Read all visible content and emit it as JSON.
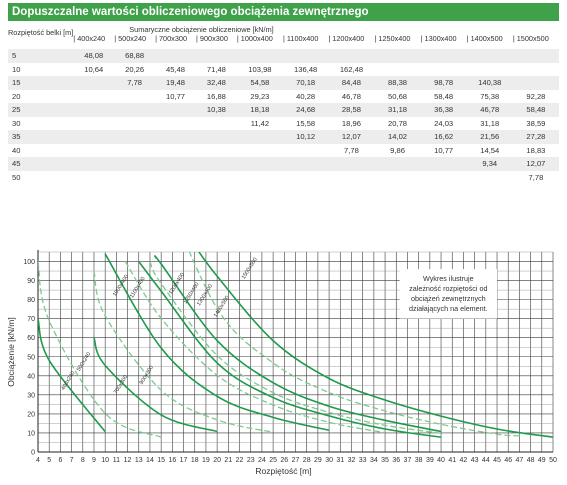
{
  "title": "Dopuszczalne wartości obliczeniowego obciążenia zewnętrznego",
  "table": {
    "span_header": "Rozpiętość belki [m]",
    "load_header": "Sumaryczne obciążenie obliczeniowe [kN/m]",
    "columns": [
      "400x240",
      "500x240",
      "700x300",
      "900x300",
      "1000x400",
      "1100x400",
      "1200x400",
      "1250x400",
      "1300x400",
      "1400x500",
      "1500x500"
    ],
    "rows": [
      {
        "span": "5",
        "values": [
          "48,08",
          "68,88",
          "",
          "",
          "",
          "",
          "",
          "",
          "",
          "",
          ""
        ]
      },
      {
        "span": "10",
        "values": [
          "10,64",
          "20,26",
          "45,48",
          "71,48",
          "103,98",
          "136,48",
          "162,48",
          "",
          "",
          "",
          ""
        ]
      },
      {
        "span": "15",
        "values": [
          "",
          "7,78",
          "19,48",
          "32,48",
          "54,58",
          "70,18",
          "84,48",
          "88,38",
          "98,78",
          "140,38",
          ""
        ]
      },
      {
        "span": "20",
        "values": [
          "",
          "",
          "10,77",
          "16,88",
          "29,23",
          "40,28",
          "46,78",
          "50,68",
          "58,48",
          "75,38",
          "92,28"
        ]
      },
      {
        "span": "25",
        "values": [
          "",
          "",
          "",
          "10,38",
          "18,18",
          "24,68",
          "28,58",
          "31,18",
          "36,38",
          "46,78",
          "58,48"
        ]
      },
      {
        "span": "30",
        "values": [
          "",
          "",
          "",
          "",
          "11,42",
          "15,58",
          "18,96",
          "20,78",
          "24,03",
          "31,18",
          "38,59"
        ]
      },
      {
        "span": "35",
        "values": [
          "",
          "",
          "",
          "",
          "",
          "10,12",
          "12,07",
          "14,02",
          "16,62",
          "21,56",
          "27,28"
        ]
      },
      {
        "span": "40",
        "values": [
          "",
          "",
          "",
          "",
          "",
          "",
          "7,78",
          "9,86",
          "10,77",
          "14,54",
          "18,83"
        ]
      },
      {
        "span": "45",
        "values": [
          "",
          "",
          "",
          "",
          "",
          "",
          "",
          "",
          "",
          "9,34",
          "12,07"
        ]
      },
      {
        "span": "50",
        "values": [
          "",
          "",
          "",
          "",
          "",
          "",
          "",
          "",
          "",
          "",
          "7,78"
        ]
      }
    ]
  },
  "chart_data": {
    "type": "line",
    "xlabel": "Rozpiętość [m]",
    "ylabel": "Obciążenie [kN/m]",
    "xlim": [
      4,
      50
    ],
    "ylim": [
      0,
      105
    ],
    "xticks": [
      4,
      5,
      6,
      7,
      8,
      9,
      10,
      11,
      12,
      13,
      14,
      15,
      16,
      17,
      18,
      19,
      20,
      21,
      22,
      23,
      24,
      25,
      26,
      27,
      28,
      29,
      30,
      31,
      32,
      33,
      34,
      35,
      36,
      37,
      38,
      39,
      40,
      41,
      42,
      43,
      44,
      45,
      46,
      47,
      48,
      49,
      50
    ],
    "yticks": [
      0,
      10,
      20,
      30,
      40,
      50,
      60,
      70,
      80,
      90,
      100
    ],
    "grid": true,
    "annotation": "Wykres ilustruje zależność rozpiętości od obciążeń zewnętrznych działających na element.",
    "series": [
      {
        "name": "400x240",
        "style": "solid",
        "x": [
          4,
          5,
          10
        ],
        "y": [
          70,
          48.08,
          10.64
        ],
        "label_at": [
          6.8,
          37
        ]
      },
      {
        "name": "500x240",
        "style": "dashed",
        "x": [
          4,
          5,
          10,
          15
        ],
        "y": [
          100,
          68.88,
          20.26,
          7.78
        ],
        "label_at": [
          8.2,
          47
        ]
      },
      {
        "name": "700x300",
        "style": "solid",
        "x": [
          9,
          10,
          15,
          20
        ],
        "y": [
          60,
          45.48,
          19.48,
          10.77
        ],
        "label_at": [
          11.5,
          35
        ]
      },
      {
        "name": "900x300",
        "style": "dashed",
        "x": [
          9,
          10,
          15,
          20,
          25
        ],
        "y": [
          95,
          71.48,
          32.48,
          16.88,
          10.38
        ],
        "label_at": [
          13.8,
          40
        ]
      },
      {
        "name": "1000x400",
        "style": "solid",
        "x": [
          10,
          15,
          20,
          25,
          30
        ],
        "y": [
          103.98,
          54.58,
          29.23,
          18.18,
          11.42
        ],
        "label_at": [
          11.5,
          87
        ]
      },
      {
        "name": "1100x400",
        "style": "dashed",
        "x": [
          11.8,
          15,
          20,
          25,
          30,
          35
        ],
        "y": [
          100,
          70.18,
          40.28,
          24.68,
          15.58,
          10.12
        ],
        "label_at": [
          13,
          86
        ]
      },
      {
        "name": "1200x400",
        "style": "solid",
        "x": [
          13,
          15,
          20,
          25,
          30,
          35,
          40
        ],
        "y": [
          100,
          84.48,
          46.78,
          28.58,
          18.96,
          12.07,
          7.78
        ],
        "label_at": [
          16.5,
          88
        ]
      },
      {
        "name": "1250x400",
        "style": "dashed",
        "x": [
          14,
          15,
          20,
          25,
          30,
          35,
          40
        ],
        "y": [
          100,
          88.38,
          50.68,
          31.18,
          20.78,
          14.02,
          9.86
        ],
        "label_at": [
          17.8,
          83
        ]
      },
      {
        "name": "1300x400",
        "style": "solid",
        "x": [
          14.5,
          15,
          20,
          25,
          30,
          35,
          40
        ],
        "y": [
          102,
          98.78,
          58.48,
          36.38,
          24.03,
          16.62,
          10.77
        ],
        "label_at": [
          19,
          82
        ]
      },
      {
        "name": "1400x500",
        "style": "dashed",
        "x": [
          15,
          20,
          25,
          30,
          35,
          40,
          45,
          47
        ],
        "y": [
          140.38,
          75.38,
          46.78,
          31.18,
          21.56,
          14.54,
          9.34,
          8.5
        ],
        "label_at": [
          20.5,
          76
        ]
      },
      {
        "name": "1500x500",
        "style": "solid",
        "x": [
          17.8,
          20,
          25,
          30,
          35,
          40,
          45,
          50
        ],
        "y": [
          110,
          92.28,
          58.48,
          38.59,
          27.28,
          18.83,
          12.07,
          7.78
        ],
        "label_at": [
          23,
          96
        ]
      }
    ]
  }
}
